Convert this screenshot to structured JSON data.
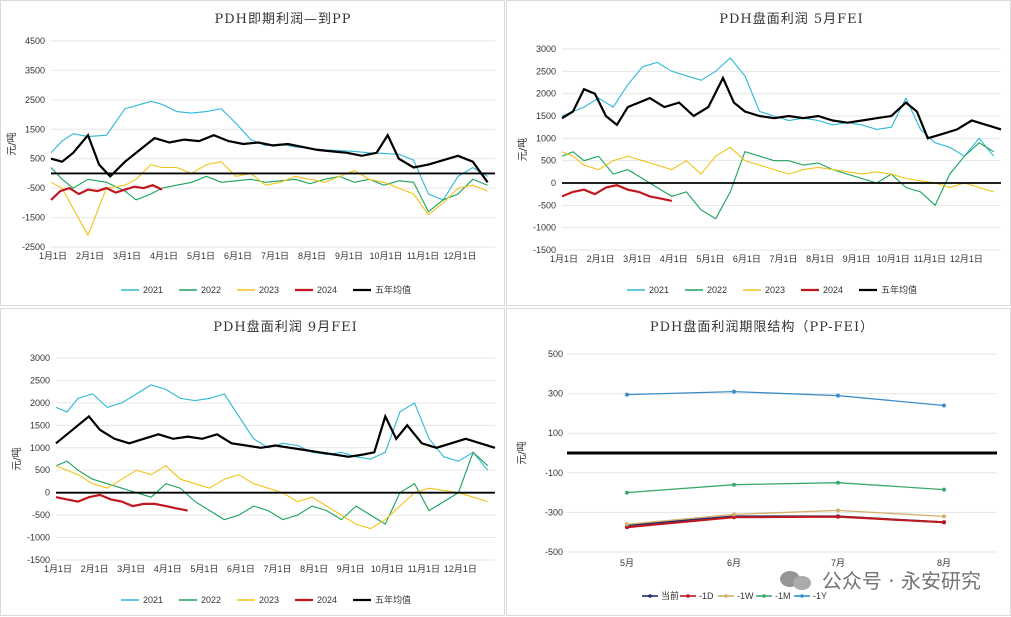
{
  "chart_data": [
    {
      "type": "line",
      "title": "PDH即期利润—到PP",
      "ylabel": "元/吨",
      "ylim": [
        -2500,
        4500
      ],
      "yticks": [
        4500,
        3500,
        2500,
        1500,
        500,
        -500,
        -1500,
        -2500
      ],
      "x_categories": [
        "1月1日",
        "2月1日",
        "3月1日",
        "4月1日",
        "5月1日",
        "6月1日",
        "7月1日",
        "8月1日",
        "9月1日",
        "10月1日",
        "11月1日",
        "12月1日"
      ],
      "series": [
        {
          "name": "2021",
          "color": "#2fb8d8",
          "x": [
            0,
            0.3,
            0.6,
            1.0,
            1.5,
            2.0,
            2.3,
            2.7,
            3.0,
            3.4,
            3.8,
            4.2,
            4.6,
            5.0,
            5.4,
            5.8,
            6.2,
            6.6,
            7.0,
            7.4,
            7.8,
            8.2,
            8.6,
            9.0,
            9.4,
            9.8,
            10.2,
            10.6,
            11.0,
            11.4,
            11.8
          ],
          "values": [
            700,
            1100,
            1350,
            1250,
            1300,
            2200,
            2300,
            2450,
            2350,
            2100,
            2050,
            2100,
            2200,
            1700,
            1150,
            950,
            1000,
            900,
            850,
            800,
            780,
            750,
            700,
            680,
            650,
            450,
            -700,
            -900,
            -100,
            200,
            -100
          ]
        },
        {
          "name": "2022",
          "color": "#1aa35b",
          "x": [
            0,
            0.3,
            0.6,
            1.0,
            1.5,
            2.0,
            2.3,
            2.7,
            3.0,
            3.4,
            3.8,
            4.2,
            4.6,
            5.0,
            5.4,
            5.8,
            6.2,
            6.6,
            7.0,
            7.4,
            7.8,
            8.2,
            8.6,
            9.0,
            9.4,
            9.8,
            10.2,
            10.6,
            11.0,
            11.4,
            11.8
          ],
          "values": [
            200,
            -200,
            -500,
            -200,
            -300,
            -600,
            -900,
            -700,
            -500,
            -400,
            -300,
            -100,
            -300,
            -250,
            -200,
            -300,
            -250,
            -200,
            -350,
            -200,
            -100,
            -300,
            -200,
            -400,
            -250,
            -300,
            -1300,
            -900,
            -700,
            -200,
            -400
          ]
        },
        {
          "name": "2023",
          "color": "#f2c418",
          "x": [
            0,
            0.3,
            0.6,
            1.0,
            1.5,
            2.0,
            2.3,
            2.7,
            3.0,
            3.4,
            3.8,
            4.2,
            4.6,
            5.0,
            5.4,
            5.8,
            6.2,
            6.6,
            7.0,
            7.4,
            7.8,
            8.2,
            8.6,
            9.0,
            9.4,
            9.8,
            10.2,
            10.6,
            11.0,
            11.4,
            11.8
          ],
          "values": [
            -300,
            -500,
            -1200,
            -2100,
            -500,
            -400,
            -200,
            300,
            200,
            200,
            0,
            300,
            400,
            -100,
            0,
            -400,
            -300,
            -100,
            -200,
            -300,
            -100,
            100,
            -200,
            -300,
            -500,
            -700,
            -1400,
            -1000,
            -500,
            -400,
            -600
          ]
        },
        {
          "name": "2024",
          "color": "#c0181e",
          "x": [
            0,
            0.25,
            0.5,
            0.75,
            1.0,
            1.25,
            1.5,
            1.75,
            2.0,
            2.25,
            2.5,
            2.75,
            3.0
          ],
          "values": [
            -900,
            -600,
            -500,
            -700,
            -550,
            -600,
            -500,
            -650,
            -550,
            -450,
            -500,
            -400,
            -550
          ]
        },
        {
          "name": "五年均值",
          "color": "#000000",
          "x": [
            0,
            0.3,
            0.6,
            1.0,
            1.3,
            1.6,
            2.0,
            2.4,
            2.8,
            3.2,
            3.6,
            4.0,
            4.4,
            4.8,
            5.2,
            5.6,
            6.0,
            6.4,
            6.8,
            7.2,
            7.6,
            8.0,
            8.4,
            8.8,
            9.1,
            9.4,
            9.8,
            10.2,
            10.6,
            11.0,
            11.4,
            11.8
          ],
          "values": [
            500,
            400,
            700,
            1300,
            300,
            -100,
            400,
            800,
            1200,
            1050,
            1150,
            1100,
            1300,
            1100,
            1000,
            1050,
            950,
            1000,
            900,
            800,
            750,
            700,
            600,
            700,
            1300,
            500,
            200,
            300,
            450,
            600,
            400,
            -300
          ]
        }
      ]
    },
    {
      "type": "line",
      "title": "PDH盘面利润  5月FEI",
      "ylabel": "元/吨",
      "ylim": [
        -1500,
        3000
      ],
      "yticks": [
        3000,
        2500,
        2000,
        1500,
        1000,
        500,
        0,
        -500,
        -1000,
        -1500
      ],
      "x_categories": [
        "1月1日",
        "2月1日",
        "3月1日",
        "4月1日",
        "5月1日",
        "6月1日",
        "7月1日",
        "8月1日",
        "9月1日",
        "10月1日",
        "11月1日",
        "12月1日"
      ],
      "series": [
        {
          "name": "2021",
          "color": "#2fb8d8",
          "x": [
            0,
            0.3,
            0.6,
            1.0,
            1.4,
            1.8,
            2.2,
            2.6,
            3.0,
            3.4,
            3.8,
            4.2,
            4.6,
            5.0,
            5.4,
            5.8,
            6.2,
            6.6,
            7.0,
            7.4,
            7.8,
            8.2,
            8.6,
            9.0,
            9.4,
            9.8,
            10.2,
            10.6,
            11.0,
            11.4,
            11.8
          ],
          "values": [
            1500,
            1600,
            1700,
            1900,
            1700,
            2200,
            2600,
            2700,
            2500,
            2400,
            2300,
            2500,
            2800,
            2400,
            1600,
            1500,
            1400,
            1450,
            1400,
            1300,
            1350,
            1300,
            1200,
            1250,
            1900,
            1200,
            900,
            800,
            600,
            1000,
            600
          ]
        },
        {
          "name": "2022",
          "color": "#1aa35b",
          "x": [
            0,
            0.3,
            0.6,
            1.0,
            1.4,
            1.8,
            2.2,
            2.6,
            3.0,
            3.4,
            3.8,
            4.2,
            4.6,
            5.0,
            5.4,
            5.8,
            6.2,
            6.6,
            7.0,
            7.4,
            7.8,
            8.2,
            8.6,
            9.0,
            9.4,
            9.8,
            10.2,
            10.6,
            11.0,
            11.4,
            11.8
          ],
          "values": [
            600,
            700,
            500,
            600,
            200,
            300,
            100,
            -100,
            -300,
            -200,
            -600,
            -800,
            -200,
            700,
            600,
            500,
            500,
            400,
            450,
            300,
            200,
            100,
            0,
            200,
            -100,
            -200,
            -500,
            200,
            600,
            900,
            700
          ]
        },
        {
          "name": "2023",
          "color": "#f2c418",
          "x": [
            0,
            0.3,
            0.6,
            1.0,
            1.4,
            1.8,
            2.2,
            2.6,
            3.0,
            3.4,
            3.8,
            4.2,
            4.6,
            5.0,
            5.4,
            5.8,
            6.2,
            6.6,
            7.0,
            7.4,
            7.8,
            8.2,
            8.6,
            9.0,
            9.4,
            9.8,
            10.2,
            10.6,
            11.0,
            11.4,
            11.8
          ],
          "values": [
            700,
            600,
            400,
            300,
            500,
            600,
            500,
            400,
            300,
            500,
            200,
            600,
            800,
            500,
            400,
            300,
            200,
            300,
            350,
            300,
            250,
            200,
            250,
            200,
            100,
            50,
            0,
            -100,
            0,
            -100,
            -200
          ]
        },
        {
          "name": "2024",
          "color": "#c0181e",
          "x": [
            0,
            0.3,
            0.6,
            0.9,
            1.2,
            1.5,
            1.8,
            2.1,
            2.4,
            2.7,
            3.0
          ],
          "values": [
            -300,
            -200,
            -150,
            -250,
            -100,
            -50,
            -150,
            -200,
            -300,
            -350,
            -400
          ]
        },
        {
          "name": "五年均值",
          "color": "#000000",
          "x": [
            0,
            0.3,
            0.6,
            0.9,
            1.2,
            1.5,
            1.8,
            2.1,
            2.4,
            2.8,
            3.2,
            3.6,
            4.0,
            4.4,
            4.7,
            5.0,
            5.4,
            5.8,
            6.2,
            6.6,
            7.0,
            7.4,
            7.8,
            8.2,
            8.6,
            9.0,
            9.4,
            9.7,
            10.0,
            10.4,
            10.8,
            11.2,
            11.6,
            12.0
          ],
          "values": [
            1450,
            1600,
            2100,
            2000,
            1500,
            1300,
            1700,
            1800,
            1900,
            1700,
            1800,
            1500,
            1700,
            2350,
            1800,
            1600,
            1500,
            1450,
            1500,
            1450,
            1500,
            1400,
            1350,
            1400,
            1450,
            1500,
            1800,
            1600,
            1000,
            1100,
            1200,
            1400,
            1300,
            1200
          ]
        }
      ]
    },
    {
      "type": "line",
      "title": "PDH盘面利润  9月FEI",
      "ylabel": "元/吨",
      "ylim": [
        -1500,
        3000
      ],
      "yticks": [
        3000,
        2500,
        2000,
        1500,
        1000,
        500,
        0,
        -500,
        -1000,
        -1500
      ],
      "x_categories": [
        "1月1日",
        "2月1日",
        "3月1日",
        "4月1日",
        "5月1日",
        "6月1日",
        "7月1日",
        "8月1日",
        "9月1日",
        "10月1日",
        "11月1日",
        "12月1日"
      ],
      "series": [
        {
          "name": "2021",
          "color": "#2fb8d8",
          "x": [
            0,
            0.3,
            0.6,
            1.0,
            1.4,
            1.8,
            2.2,
            2.6,
            3.0,
            3.4,
            3.8,
            4.2,
            4.6,
            5.0,
            5.4,
            5.8,
            6.2,
            6.6,
            7.0,
            7.4,
            7.8,
            8.2,
            8.6,
            9.0,
            9.4,
            9.8,
            10.2,
            10.6,
            11.0,
            11.4,
            11.8
          ],
          "values": [
            1900,
            1800,
            2100,
            2200,
            1900,
            2000,
            2200,
            2400,
            2300,
            2100,
            2050,
            2100,
            2200,
            1700,
            1200,
            1000,
            1100,
            1050,
            900,
            850,
            900,
            800,
            750,
            900,
            1800,
            2000,
            1200,
            800,
            700,
            900,
            500
          ]
        },
        {
          "name": "2022",
          "color": "#1aa35b",
          "x": [
            0,
            0.3,
            0.6,
            1.0,
            1.4,
            1.8,
            2.2,
            2.6,
            3.0,
            3.4,
            3.8,
            4.2,
            4.6,
            5.0,
            5.4,
            5.8,
            6.2,
            6.6,
            7.0,
            7.4,
            7.8,
            8.2,
            8.6,
            9.0,
            9.4,
            9.8,
            10.2,
            10.6,
            11.0,
            11.4,
            11.8
          ],
          "values": [
            600,
            700,
            500,
            300,
            200,
            100,
            0,
            -100,
            200,
            100,
            -200,
            -400,
            -600,
            -500,
            -300,
            -400,
            -600,
            -500,
            -300,
            -400,
            -600,
            -300,
            -500,
            -700,
            0,
            200,
            -400,
            -200,
            0,
            900,
            600
          ]
        },
        {
          "name": "2023",
          "color": "#f2c418",
          "x": [
            0,
            0.3,
            0.6,
            1.0,
            1.4,
            1.8,
            2.2,
            2.6,
            3.0,
            3.4,
            3.8,
            4.2,
            4.6,
            5.0,
            5.4,
            5.8,
            6.2,
            6.6,
            7.0,
            7.4,
            7.8,
            8.2,
            8.6,
            9.0,
            9.4,
            9.8,
            10.2,
            10.6,
            11.0,
            11.4,
            11.8
          ],
          "values": [
            600,
            500,
            400,
            200,
            100,
            300,
            500,
            400,
            600,
            300,
            200,
            100,
            300,
            400,
            200,
            100,
            0,
            -200,
            -100,
            -300,
            -500,
            -700,
            -800,
            -600,
            -300,
            0,
            100,
            50,
            0,
            -100,
            -200
          ]
        },
        {
          "name": "2024",
          "color": "#c0181e",
          "x": [
            0,
            0.3,
            0.6,
            0.9,
            1.2,
            1.5,
            1.8,
            2.1,
            2.4,
            2.7,
            3.0,
            3.3,
            3.6
          ],
          "values": [
            -100,
            -150,
            -200,
            -100,
            -50,
            -150,
            -200,
            -300,
            -250,
            -250,
            -300,
            -350,
            -400
          ]
        },
        {
          "name": "五年均值",
          "color": "#000000",
          "x": [
            0,
            0.3,
            0.6,
            0.9,
            1.2,
            1.6,
            2.0,
            2.4,
            2.8,
            3.2,
            3.6,
            4.0,
            4.4,
            4.8,
            5.2,
            5.6,
            6.0,
            6.4,
            6.8,
            7.2,
            7.6,
            8.0,
            8.4,
            8.7,
            9.0,
            9.3,
            9.6,
            10.0,
            10.4,
            10.8,
            11.2,
            11.6,
            12.0
          ],
          "values": [
            1100,
            1300,
            1500,
            1700,
            1400,
            1200,
            1100,
            1200,
            1300,
            1200,
            1250,
            1200,
            1300,
            1100,
            1050,
            1000,
            1050,
            1000,
            950,
            900,
            850,
            800,
            850,
            900,
            1700,
            1200,
            1500,
            1100,
            1000,
            1100,
            1200,
            1100,
            1000
          ]
        }
      ]
    },
    {
      "type": "line",
      "title": "PDH盘面利润期限结构（PP-FEI）",
      "ylabel": "元/吨",
      "ylim": [
        -500,
        500
      ],
      "yticks": [
        500,
        300,
        100,
        -100,
        -300,
        -500
      ],
      "categories": [
        "5月",
        "6月",
        "7月",
        "8月"
      ],
      "series": [
        {
          "name": "当前",
          "color": "#1f2f6e",
          "values": [
            -365,
            -320,
            -320,
            -350
          ]
        },
        {
          "name": "-1D",
          "color": "#c0181e",
          "values": [
            -375,
            -325,
            -322,
            -350
          ]
        },
        {
          "name": "-1W",
          "color": "#d4b06a",
          "values": [
            -360,
            -310,
            -290,
            -320
          ]
        },
        {
          "name": "-1M",
          "color": "#3aa86b",
          "values": [
            -200,
            -160,
            -150,
            -185
          ]
        },
        {
          "name": "-1Y",
          "color": "#3a8dc8",
          "values": [
            295,
            310,
            290,
            240
          ]
        }
      ]
    }
  ],
  "watermark": {
    "text": "公众号 · 永安研究"
  }
}
